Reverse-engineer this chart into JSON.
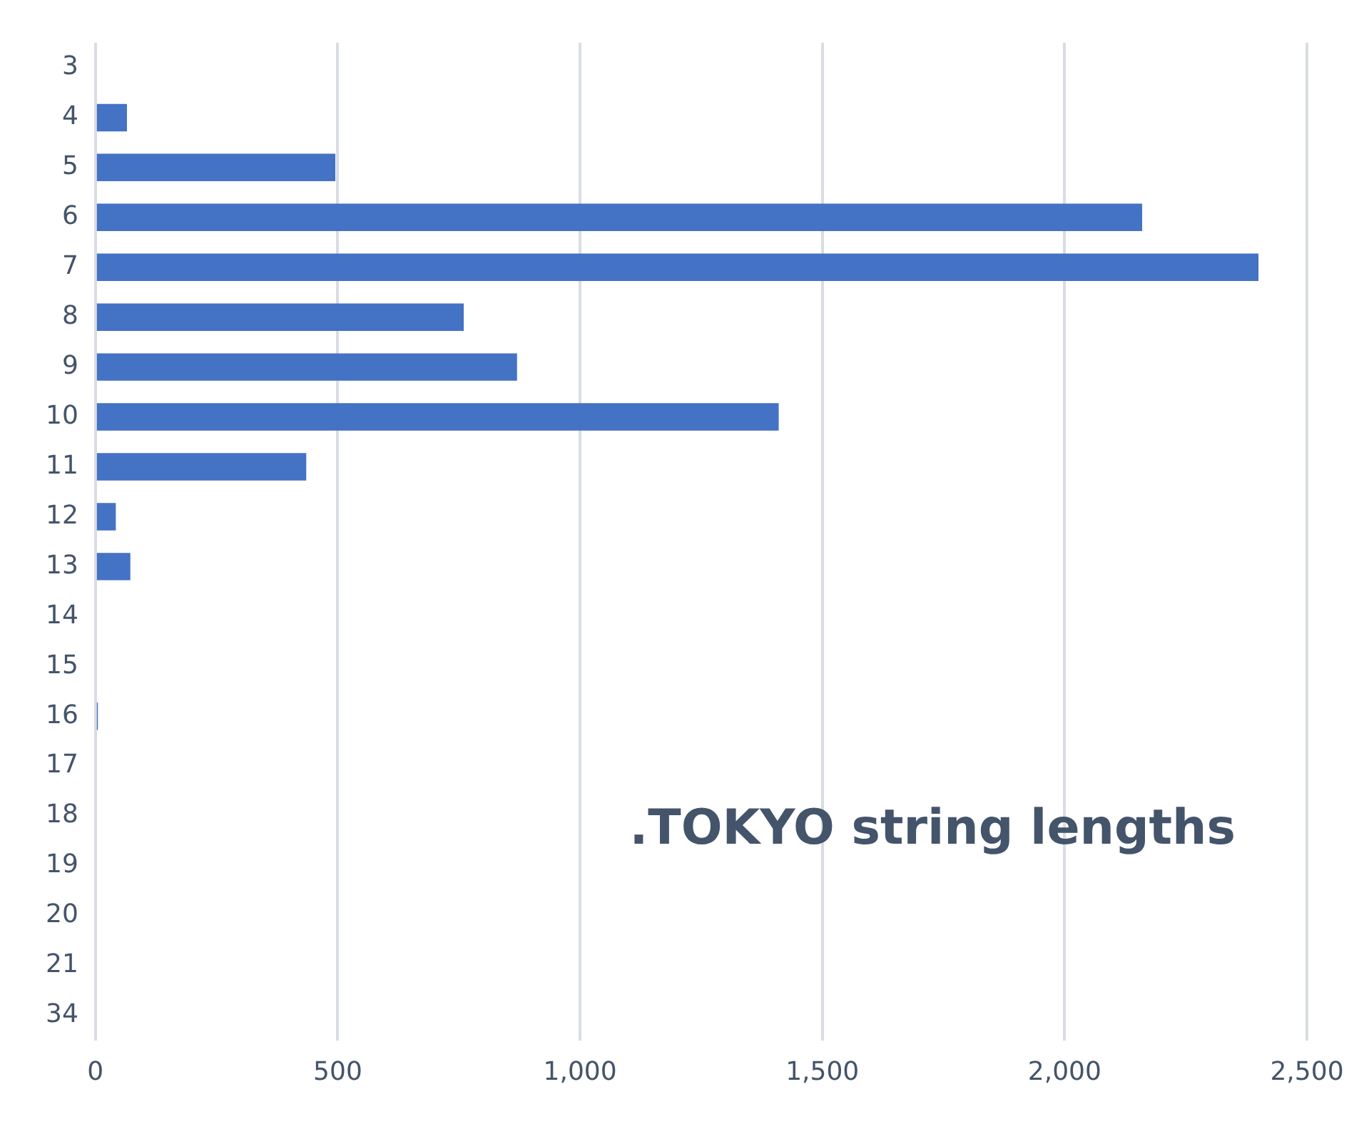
{
  "chart_data": {
    "type": "bar",
    "orientation": "horizontal",
    "title": ".TOKYO string lengths",
    "categories": [
      "3",
      "4",
      "5",
      "6",
      "7",
      "8",
      "9",
      "10",
      "11",
      "12",
      "13",
      "14",
      "15",
      "16",
      "17",
      "18",
      "19",
      "20",
      "21",
      "34"
    ],
    "values": [
      0,
      65,
      495,
      2160,
      2400,
      760,
      870,
      1410,
      435,
      42,
      72,
      0,
      0,
      5,
      0,
      0,
      0,
      0,
      0,
      0
    ],
    "color": "#4472c4",
    "xlim": [
      0,
      2500
    ],
    "xticks": [
      {
        "value": 0,
        "label": "0"
      },
      {
        "value": 500,
        "label": "500"
      },
      {
        "value": 1000,
        "label": "1,000"
      },
      {
        "value": 1500,
        "label": "1,500"
      },
      {
        "value": 2000,
        "label": "2,000"
      },
      {
        "value": 2500,
        "label": "2,500"
      }
    ],
    "grid": "x",
    "legend": false
  }
}
